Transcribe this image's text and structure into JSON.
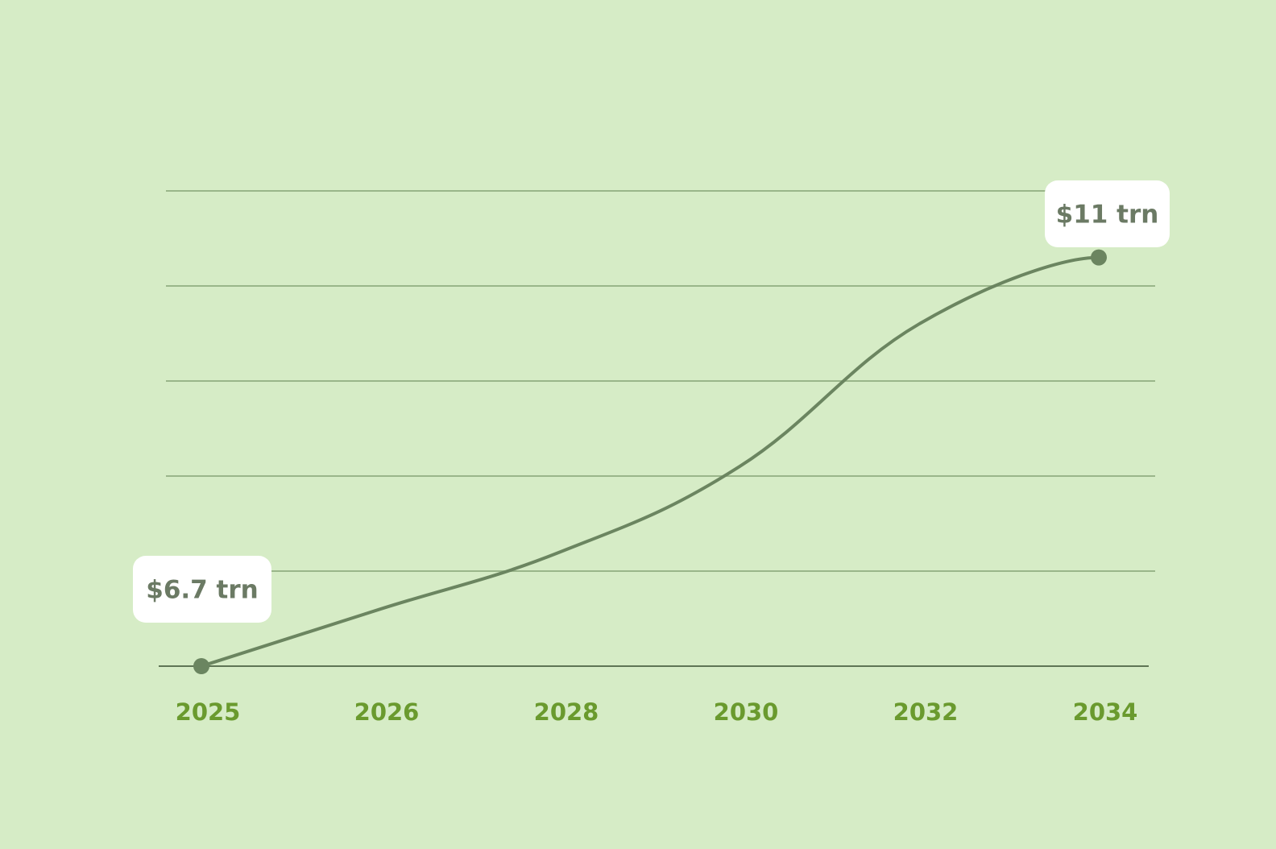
{
  "chart_data": {
    "type": "line",
    "title": "",
    "xlabel": "",
    "ylabel": "",
    "categories": [
      "2025",
      "2026",
      "2028",
      "2030",
      "2032",
      "2034"
    ],
    "series": [
      {
        "values": [
          6.7,
          7.3,
          7.9,
          8.8,
          10.3,
          11
        ]
      }
    ],
    "annotations": [
      {
        "text": "$6.7 trn",
        "category": "2025",
        "value": 6.7
      },
      {
        "text": "$11 trn",
        "category": "2034",
        "value": 11
      }
    ],
    "ylim": [
      6.7,
      11.7
    ],
    "grid": true,
    "legend": "none",
    "colors": {
      "background": "#d6ecc6",
      "line": "#6b8560",
      "gridline": "#9ab68a",
      "baseline": "#5f7555",
      "tick_text": "#6a9a2e",
      "callout_bg": "#ffffff",
      "callout_text": "#6b7a64"
    }
  }
}
